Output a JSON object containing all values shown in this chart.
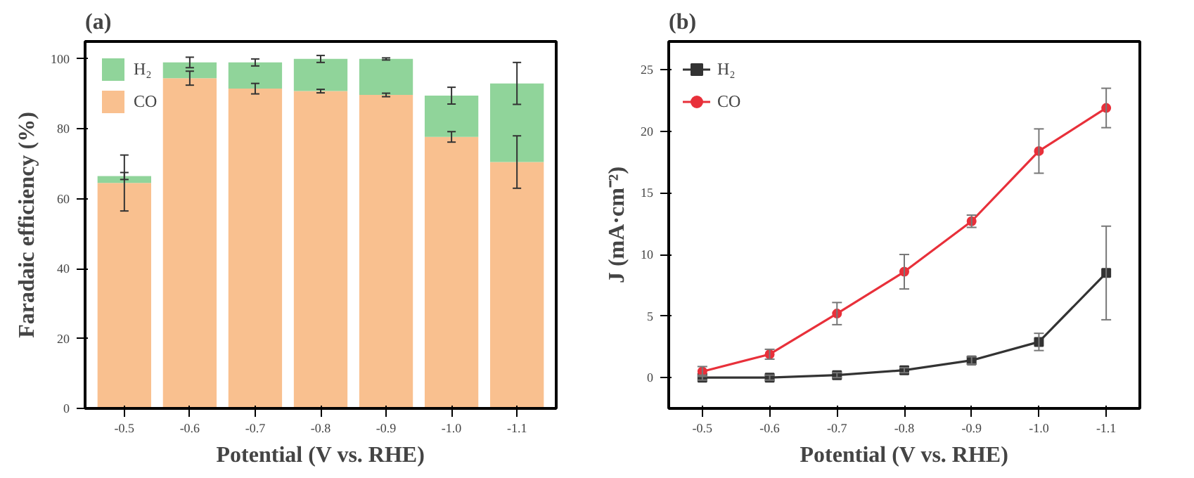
{
  "chart_data": [
    {
      "type": "bar",
      "title": "(a)",
      "xlabel": "Potential (V vs. RHE)",
      "ylabel": "Faradaic efficiency (%)",
      "stacked": true,
      "legend": "top left",
      "grid": false,
      "categories": [
        "-0.5",
        "-0.6",
        "-0.7",
        "-0.8",
        "-0.9",
        "-1.0",
        "-1.1"
      ],
      "ylim": [
        0,
        105
      ],
      "yticks": [
        0,
        20,
        40,
        60,
        80,
        100
      ],
      "series": [
        {
          "name": "CO",
          "color": "#f9c08f",
          "values": [
            64.5,
            94.5,
            91.5,
            90.8,
            89.7,
            77.7,
            70.5
          ],
          "errors": [
            8,
            2,
            1.5,
            0.5,
            0.5,
            1.5,
            7.5
          ]
        },
        {
          "name": "H₂",
          "color": "#90d49a",
          "values": [
            2,
            4.5,
            7.5,
            9.2,
            10.3,
            11.8,
            22.5
          ],
          "errors": [
            1,
            1.5,
            1,
            1,
            0.3,
            2.4,
            6
          ]
        }
      ]
    },
    {
      "type": "line",
      "title": "(b)",
      "xlabel": "Potential (V vs. RHE)",
      "ylabel": "J (mA·cm⁻²)",
      "legend": "top left",
      "grid": false,
      "line_style": "solid",
      "x": [
        -0.5,
        -0.6,
        -0.7,
        -0.8,
        -0.9,
        -1.0,
        -1.1
      ],
      "xlim": [
        -0.45,
        -1.15
      ],
      "xticks": [
        {
          "value": -0.5,
          "label": "-0.5"
        },
        {
          "value": -0.6,
          "label": "-0.6"
        },
        {
          "value": -0.7,
          "label": "-0.7"
        },
        {
          "value": -0.8,
          "label": "-0.8"
        },
        {
          "value": -0.9,
          "label": "-0.9"
        },
        {
          "value": -1.0,
          "label": "-1.0"
        },
        {
          "value": -1.1,
          "label": "-1.1"
        }
      ],
      "ylim": [
        -2.5,
        27.3
      ],
      "yticks": [
        0,
        5,
        10,
        15,
        20,
        25
      ],
      "series": [
        {
          "name": "H₂",
          "color": "#333333",
          "marker": "square",
          "values": [
            0.0,
            0.0,
            0.2,
            0.6,
            1.4,
            2.9,
            8.5
          ],
          "errors": [
            0.2,
            0.2,
            0.2,
            0.2,
            0.3,
            0.7,
            3.8
          ]
        },
        {
          "name": "CO",
          "color": "#e8303a",
          "marker": "circle",
          "values": [
            0.5,
            1.9,
            5.2,
            8.6,
            12.7,
            18.4,
            21.9
          ],
          "errors": [
            0.4,
            0.4,
            0.9,
            1.4,
            0.5,
            1.8,
            1.6
          ]
        }
      ]
    }
  ]
}
